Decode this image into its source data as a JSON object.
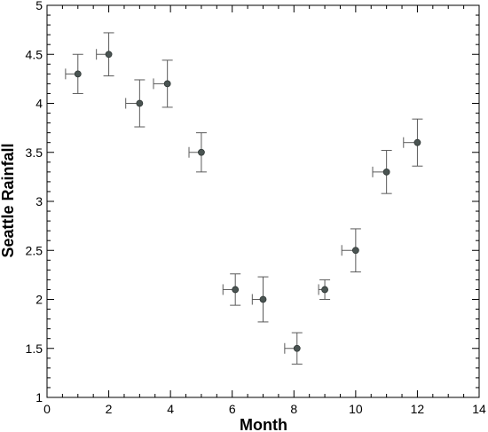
{
  "chart_data": {
    "type": "scatter",
    "title": "",
    "xlabel": "Month",
    "ylabel": "Seattle Rainfall",
    "xlim": [
      0,
      14
    ],
    "ylim": [
      1,
      5
    ],
    "xticks": [
      0,
      2,
      4,
      6,
      8,
      10,
      12,
      14
    ],
    "yticks": [
      1,
      1.5,
      2,
      2.5,
      3,
      3.5,
      4,
      4.5,
      5
    ],
    "xtick_labels": [
      "0",
      "2",
      "4",
      "6",
      "8",
      "10",
      "12",
      "14"
    ],
    "ytick_labels": [
      "1",
      "1.5",
      "2",
      "2.5",
      "3",
      "3.5",
      "4",
      "4.5",
      "5"
    ],
    "grid": false,
    "series": [
      {
        "points": [
          {
            "x": 1,
            "y": 4.3,
            "xerr_minus": 0.4,
            "xerr_plus": 0,
            "yerr": 0.2
          },
          {
            "x": 2,
            "y": 4.5,
            "xerr_minus": 0.4,
            "xerr_plus": 0,
            "yerr": 0.22
          },
          {
            "x": 3,
            "y": 4.0,
            "xerr_minus": 0.45,
            "xerr_plus": 0,
            "yerr": 0.24
          },
          {
            "x": 3.9,
            "y": 4.2,
            "xerr_minus": 0.45,
            "xerr_plus": 0,
            "yerr": 0.24
          },
          {
            "x": 5,
            "y": 3.5,
            "xerr_minus": 0.4,
            "xerr_plus": 0,
            "yerr": 0.2
          },
          {
            "x": 6.1,
            "y": 2.1,
            "xerr_minus": 0.4,
            "xerr_plus": 0,
            "yerr": 0.16
          },
          {
            "x": 7,
            "y": 2.0,
            "xerr_minus": 0.35,
            "xerr_plus": 0,
            "yerr": 0.23
          },
          {
            "x": 8.1,
            "y": 1.5,
            "xerr_minus": 0.4,
            "xerr_plus": 0,
            "yerr": 0.16
          },
          {
            "x": 9,
            "y": 2.1,
            "xerr_minus": 0.2,
            "xerr_plus": 0,
            "yerr": 0.1
          },
          {
            "x": 10,
            "y": 2.5,
            "xerr_minus": 0.45,
            "xerr_plus": 0,
            "yerr": 0.22
          },
          {
            "x": 11,
            "y": 3.3,
            "xerr_minus": 0.45,
            "xerr_plus": 0,
            "yerr": 0.22
          },
          {
            "x": 12,
            "y": 3.6,
            "xerr_minus": 0.45,
            "xerr_plus": 0,
            "yerr": 0.24
          }
        ]
      }
    ]
  },
  "colors": {
    "marker": "#4a5452",
    "errorbar": "#5a5a5a",
    "axis": "#000000"
  }
}
